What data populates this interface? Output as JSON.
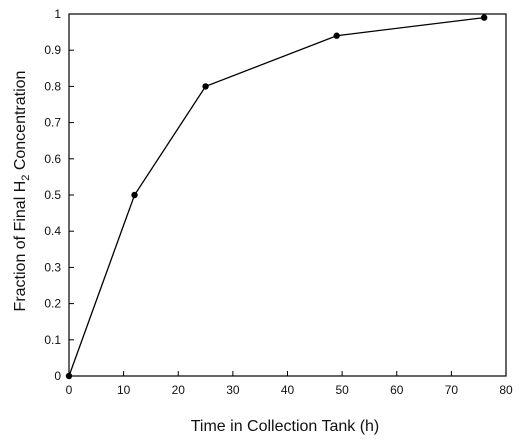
{
  "chart_data": {
    "type": "line",
    "title": "",
    "xlabel": "Time in Collection Tank (h)",
    "ylabel": {
      "before": "Fraction of Final H",
      "subscript": "2",
      "after": " Concentration"
    },
    "xlim": [
      0,
      80
    ],
    "ylim": [
      0,
      1
    ],
    "x_ticks": [
      0,
      10,
      20,
      30,
      40,
      50,
      60,
      70,
      80
    ],
    "y_ticks": [
      0,
      0.1,
      0.2,
      0.3,
      0.4,
      0.5,
      0.6,
      0.7,
      0.8,
      0.9,
      1
    ],
    "x_tick_labels": [
      "0",
      "10",
      "20",
      "30",
      "40",
      "50",
      "60",
      "70",
      "80"
    ],
    "y_tick_labels": [
      "0",
      "0.1",
      "0.2",
      "0.3",
      "0.4",
      "0.5",
      "0.6",
      "0.7",
      "0.8",
      "0.9",
      "1"
    ],
    "grid": false,
    "legend": "none",
    "series": [
      {
        "x": [
          0,
          12,
          25,
          49,
          76
        ],
        "y": [
          0,
          0.5,
          0.8,
          0.94,
          0.99
        ],
        "color": "#000000",
        "marker": "circle"
      }
    ]
  }
}
